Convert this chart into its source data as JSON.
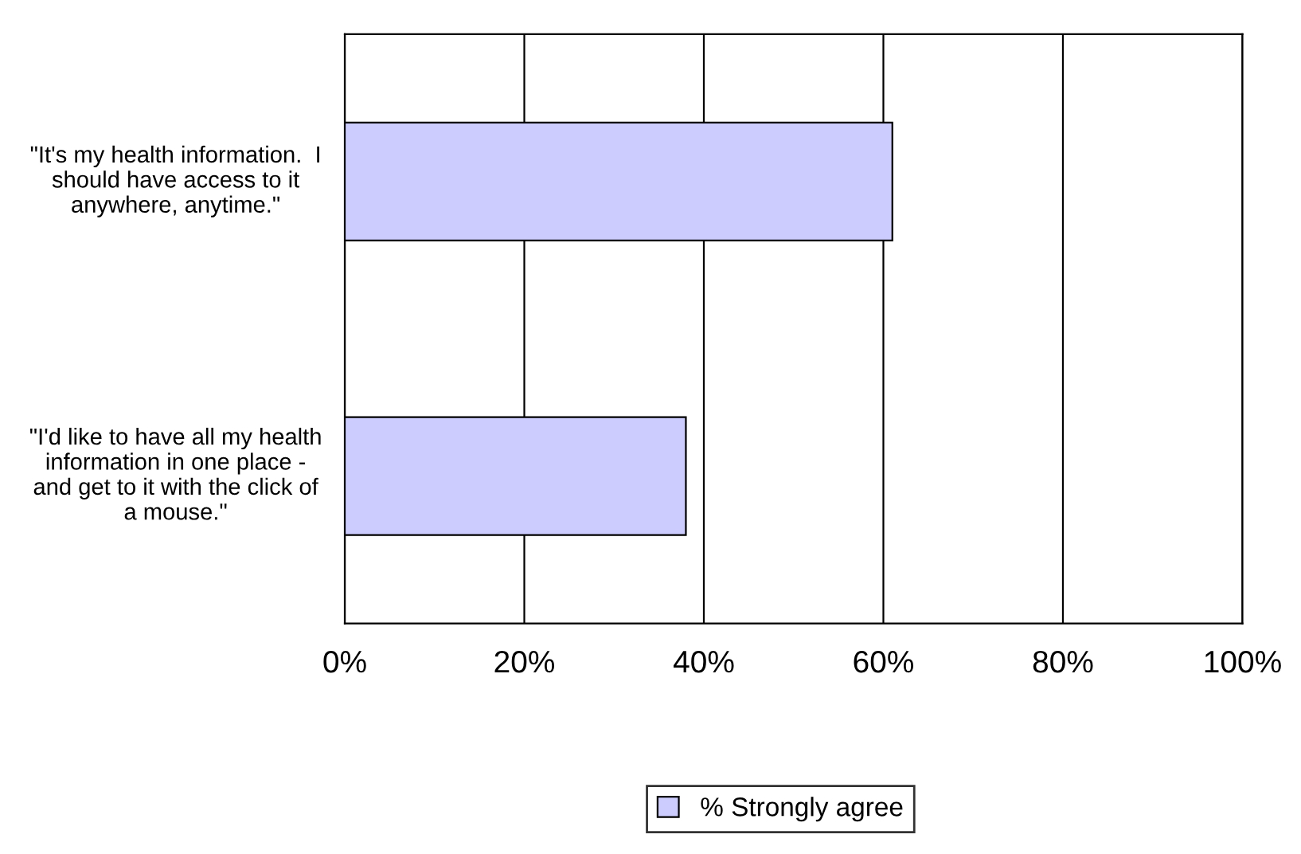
{
  "chart_data": {
    "type": "bar",
    "orientation": "horizontal",
    "categories": [
      "\"It's my health information.  I should have access to it anywhere, anytime.\"",
      "\"I'd like to have all my health information in one place - and get to it with the click of a mouse.\""
    ],
    "series": [
      {
        "name": "% Strongly agree",
        "color": "#ccccff",
        "values": [
          61,
          38
        ]
      }
    ],
    "xlim": [
      0,
      100
    ],
    "xticks": [
      {
        "value": 0,
        "label": "0%"
      },
      {
        "value": 20,
        "label": "20%"
      },
      {
        "value": 40,
        "label": "40%"
      },
      {
        "value": 60,
        "label": "60%"
      },
      {
        "value": 80,
        "label": "80%"
      },
      {
        "value": 100,
        "label": "100%"
      }
    ],
    "grid": "x",
    "legend": "bottom"
  }
}
